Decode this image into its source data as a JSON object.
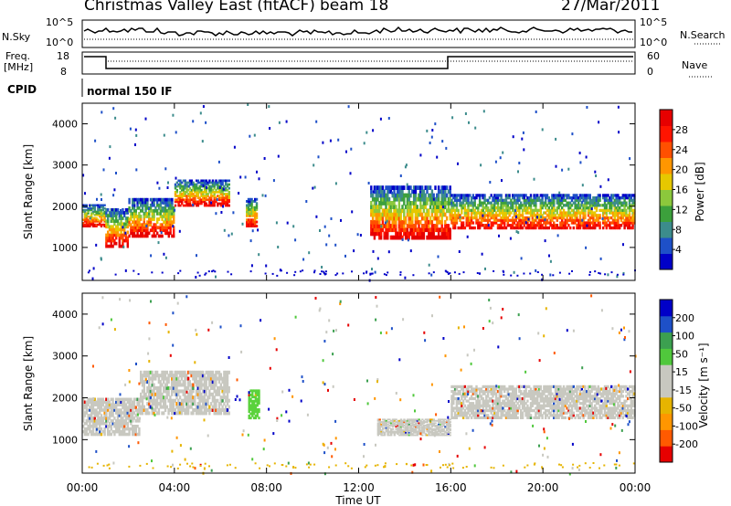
{
  "header": {
    "title": "Christmas Valley East (fitACF)",
    "beam": "beam 18",
    "date": "27/Mar/2011"
  },
  "nsky_panel": {
    "left_label": "N.Sky",
    "right_label": "N.Search",
    "top_tick": "10^5",
    "bottom_tick": "10^0"
  },
  "freq_panel": {
    "left_label_top": "Freq.",
    "left_label_bottom": "[MHz]",
    "left_ticks": [
      "18",
      "8"
    ],
    "right_ticks": [
      "60",
      "0"
    ],
    "right_label": "Nave"
  },
  "cpid_panel": {
    "label": "CPID",
    "text": "normal 150 IF"
  },
  "chart_data": [
    {
      "type": "heatmap",
      "name": "power",
      "ylabel": "Slant Range [km]",
      "yticks": [
        "1000",
        "2000",
        "3000",
        "4000"
      ],
      "ylim": [
        200,
        4500
      ],
      "xlim": [
        0,
        24
      ],
      "colorbar": {
        "label": "Power [dB]",
        "ticks": [
          "28",
          "24",
          "20",
          "16",
          "12",
          "8",
          "4"
        ],
        "colors": [
          "#0000c8",
          "#1e50c8",
          "#3c8c8c",
          "#3ca03c",
          "#8cc83c",
          "#e6c800",
          "#ff9600",
          "#ff5000",
          "#ff1400",
          "#e60000"
        ]
      },
      "bands": [
        {
          "t0": 0.0,
          "t1": 1.0,
          "r0": 1500,
          "r1": 2050,
          "level": 0.5
        },
        {
          "t0": 1.0,
          "t1": 2.0,
          "r0": 1000,
          "r1": 1950,
          "level": 0.6
        },
        {
          "t0": 2.0,
          "t1": 4.0,
          "r0": 1250,
          "r1": 2200,
          "level": 0.55
        },
        {
          "t0": 4.0,
          "t1": 6.4,
          "r0": 2000,
          "r1": 2650,
          "level": 0.5
        },
        {
          "t0": 7.1,
          "t1": 7.6,
          "r0": 1500,
          "r1": 2200,
          "level": 0.45
        },
        {
          "t0": 12.5,
          "t1": 16.0,
          "r0": 1200,
          "r1": 2500,
          "level": 0.55
        },
        {
          "t0": 16.0,
          "t1": 24.0,
          "r0": 1450,
          "r1": 2300,
          "level": 0.45
        }
      ]
    },
    {
      "type": "heatmap",
      "name": "velocity",
      "ylabel": "Slant Range [km]",
      "xlabel": "Time UT",
      "yticks": [
        "1000",
        "2000",
        "3000",
        "4000"
      ],
      "xticks": [
        "00:00",
        "04:00",
        "08:00",
        "12:00",
        "16:00",
        "20:00",
        "00:00"
      ],
      "ylim": [
        200,
        4500
      ],
      "xlim": [
        0,
        24
      ],
      "colorbar": {
        "label": "Velocity [m s⁻¹]",
        "ticks": [
          "200",
          "100",
          "50",
          "15",
          "-15",
          "-50",
          "-100",
          "-200"
        ],
        "colors": [
          "#e60000",
          "#ff5a00",
          "#ff9600",
          "#e6b400",
          "#c8c8c0",
          "#c8c8c0",
          "#50c83c",
          "#3ca050",
          "#1e50c8",
          "#0000c8"
        ]
      },
      "bands": [
        {
          "t0": 0.0,
          "t1": 2.5,
          "r0": 1100,
          "r1": 2000,
          "color": "#c8c8c0"
        },
        {
          "t0": 2.5,
          "t1": 6.4,
          "r0": 1600,
          "r1": 2650,
          "color": "#c8c8c0"
        },
        {
          "t0": 7.2,
          "t1": 7.7,
          "r0": 1500,
          "r1": 2200,
          "color": "#5ad23c"
        },
        {
          "t0": 12.8,
          "t1": 16.0,
          "r0": 1100,
          "r1": 1500,
          "color": "#c8c8c0"
        },
        {
          "t0": 16.0,
          "t1": 24.0,
          "r0": 1500,
          "r1": 2300,
          "color": "#c8c8c0"
        }
      ]
    }
  ]
}
